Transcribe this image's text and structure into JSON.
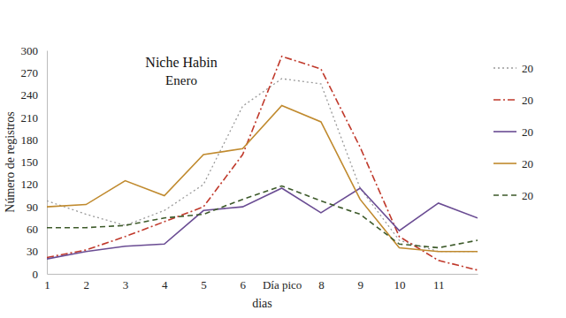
{
  "chart_data": {
    "type": "line",
    "title": "Niche Habin",
    "subtitle": "Enero",
    "x_label": "dias",
    "y_label": "Número de registros",
    "x": [
      1,
      2,
      3,
      4,
      5,
      6,
      7,
      8,
      9,
      10,
      11,
      12
    ],
    "xlim": [
      1,
      12
    ],
    "xticks": [
      1,
      2,
      3,
      4,
      5,
      6,
      {
        "value": 7,
        "label": "Día pico"
      },
      8,
      9,
      10,
      11
    ],
    "ylim": [
      0,
      300
    ],
    "yticks": [
      0,
      30,
      60,
      90,
      120,
      150,
      180,
      210,
      240,
      270,
      300
    ],
    "grid": false,
    "legend": "right",
    "series": [
      {
        "name": "20",
        "color": "#9a9a9a",
        "line_style": "dotted",
        "values": [
          98,
          80,
          65,
          85,
          120,
          225,
          262,
          255,
          115,
          45,
          30,
          30
        ]
      },
      {
        "name": "20",
        "color": "#c0392b",
        "line_style": "dashdot",
        "values": [
          22,
          32,
          50,
          70,
          90,
          160,
          292,
          275,
          170,
          50,
          18,
          5
        ]
      },
      {
        "name": "20",
        "color": "#6a4c93",
        "line_style": "solid",
        "values": [
          20,
          30,
          37,
          40,
          85,
          90,
          115,
          82,
          115,
          58,
          95,
          75
        ]
      },
      {
        "name": "20",
        "color": "#c08a2e",
        "line_style": "solid",
        "values": [
          90,
          93,
          125,
          105,
          160,
          168,
          226,
          204,
          100,
          35,
          30,
          30
        ]
      },
      {
        "name": "20",
        "color": "#3d5a2a",
        "line_style": "dashed",
        "values": [
          62,
          62,
          65,
          75,
          80,
          100,
          118,
          98,
          80,
          40,
          35,
          45
        ]
      }
    ]
  }
}
